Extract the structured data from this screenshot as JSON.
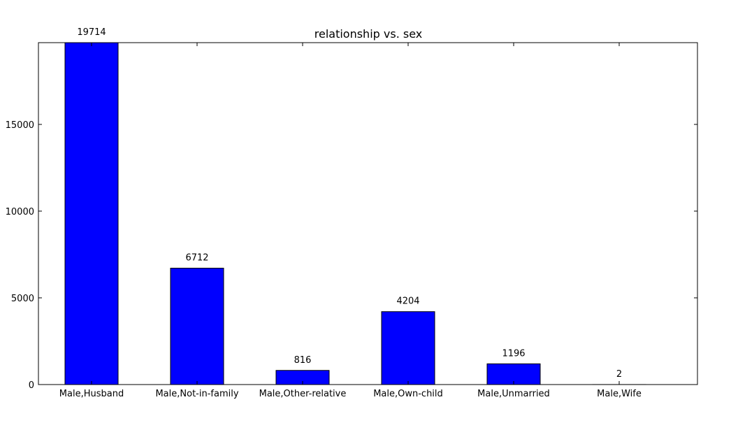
{
  "chart_data": {
    "type": "bar",
    "title": "relationship vs. sex",
    "xlabel": "",
    "ylabel": "",
    "categories": [
      "Male,Husband",
      "Male,Not-in-family",
      "Male,Other-relative",
      "Male,Own-child",
      "Male,Unmarried",
      "Male,Wife"
    ],
    "values": [
      19714,
      6712,
      816,
      4204,
      1196,
      2
    ],
    "value_labels": [
      "19714",
      "6712",
      "816",
      "4204",
      "1196",
      "2"
    ],
    "ylim": [
      0,
      19714
    ],
    "yticks": [
      0,
      5000,
      10000,
      15000
    ],
    "ytick_labels": [
      "0",
      "5000",
      "10000",
      "15000"
    ],
    "grid": false,
    "legend": "none",
    "bar_color": "#0000ff",
    "edge_color": "#000000"
  }
}
